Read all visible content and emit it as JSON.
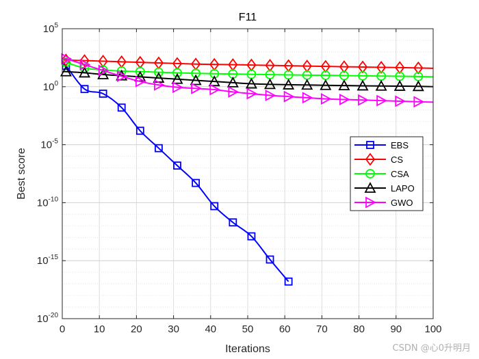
{
  "chart_data": {
    "type": "line",
    "title": "F11",
    "xlabel": "Iterations",
    "ylabel": "Best score",
    "yscale": "log",
    "xlim": [
      0,
      100
    ],
    "ylim_exp": [
      -20,
      5
    ],
    "xticks": [
      0,
      10,
      20,
      30,
      40,
      50,
      60,
      70,
      80,
      90,
      100
    ],
    "yticks": [
      {
        "base": "10",
        "exp": "-20",
        "value_exp": -20
      },
      {
        "base": "10",
        "exp": "-15",
        "value_exp": -15
      },
      {
        "base": "10",
        "exp": "-10",
        "value_exp": -10
      },
      {
        "base": "10",
        "exp": "-5",
        "value_exp": -5
      },
      {
        "base": "10",
        "exp": "0",
        "value_exp": 0
      },
      {
        "base": "10",
        "exp": "5",
        "value_exp": 5
      }
    ],
    "grid": true,
    "legend_position": "right-middle",
    "series": [
      {
        "name": "EBS",
        "color": "#0000ff",
        "marker": "square",
        "x": [
          1,
          6,
          11,
          16,
          21,
          26,
          31,
          36,
          41,
          46,
          51,
          56,
          61
        ],
        "log10_y": [
          1.8,
          -0.2,
          -0.6,
          -1.8,
          -3.8,
          -5.3,
          -6.8,
          -8.3,
          -10.3,
          -11.7,
          -12.9,
          -14.9,
          -16.8
        ]
      },
      {
        "name": "CS",
        "color": "#ff0000",
        "marker": "diamond",
        "x": [
          1,
          6,
          11,
          16,
          21,
          26,
          31,
          36,
          41,
          46,
          51,
          56,
          61,
          66,
          71,
          76,
          81,
          86,
          91,
          96
        ],
        "log10_y": [
          2.3,
          2.25,
          2.2,
          2.15,
          2.1,
          2.05,
          2.0,
          1.95,
          1.92,
          1.9,
          1.87,
          1.84,
          1.81,
          1.78,
          1.75,
          1.72,
          1.7,
          1.67,
          1.65,
          1.62
        ]
      },
      {
        "name": "CSA",
        "color": "#00ff00",
        "marker": "circle",
        "x": [
          1,
          6,
          11,
          16,
          21,
          26,
          31,
          36,
          41,
          46,
          51,
          56,
          61,
          66,
          71,
          76,
          81,
          86,
          91,
          96
        ],
        "log10_y": [
          2.1,
          1.6,
          1.45,
          1.35,
          1.3,
          1.25,
          1.2,
          1.15,
          1.12,
          1.1,
          1.07,
          1.04,
          1.02,
          1.0,
          0.98,
          0.96,
          0.94,
          0.92,
          0.9,
          0.88
        ]
      },
      {
        "name": "LAPO",
        "color": "#000000",
        "marker": "triangle-up",
        "x": [
          1,
          6,
          11,
          16,
          21,
          26,
          31,
          36,
          41,
          46,
          51,
          56,
          61,
          66,
          71,
          76,
          81,
          86,
          91,
          96
        ],
        "log10_y": [
          1.3,
          1.2,
          1.05,
          0.95,
          0.85,
          0.75,
          0.65,
          0.55,
          0.45,
          0.35,
          0.25,
          0.2,
          0.17,
          0.15,
          0.12,
          0.1,
          0.08,
          0.06,
          0.05,
          0.03
        ]
      },
      {
        "name": "GWO",
        "color": "#ff00ff",
        "marker": "triangle-right",
        "x": [
          1,
          6,
          11,
          16,
          21,
          26,
          31,
          36,
          41,
          46,
          51,
          56,
          61,
          66,
          71,
          76,
          81,
          86,
          91,
          96
        ],
        "log10_y": [
          2.4,
          1.9,
          1.4,
          0.9,
          0.45,
          0.15,
          -0.05,
          -0.15,
          -0.25,
          -0.45,
          -0.6,
          -0.75,
          -0.85,
          -0.95,
          -1.05,
          -1.1,
          -1.15,
          -1.2,
          -1.25,
          -1.3
        ]
      }
    ]
  },
  "watermark": "CSDN @心0升明月"
}
